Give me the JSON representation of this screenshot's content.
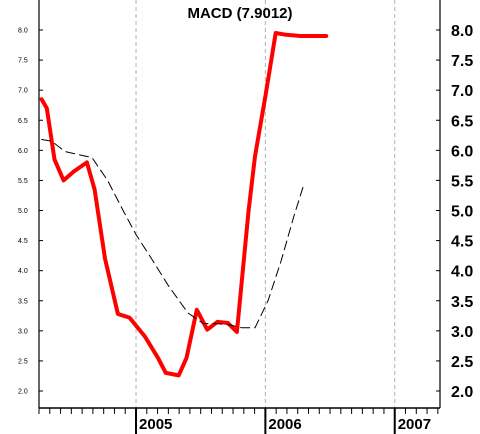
{
  "chart_data": {
    "type": "line",
    "title": "MACD (7.9012)",
    "yticks": [
      "8.0",
      "7.5",
      "7.0",
      "6.5",
      "6.0",
      "5.5",
      "5.0",
      "4.5",
      "4.0",
      "3.5",
      "3.0",
      "2.5",
      "2.0"
    ],
    "ylim": [
      1.8,
      8.3
    ],
    "xlim": [
      2004.25,
      2007.35
    ],
    "xticks": [
      "2005",
      "2006",
      "2007"
    ],
    "grid": "vertical-dashed",
    "series": [
      {
        "role": "macd",
        "color": "#ff0000",
        "style": "solid",
        "x": [
          2004.27,
          2004.31,
          2004.37,
          2004.44,
          2004.52,
          2004.62,
          2004.68,
          2004.76,
          2004.86,
          2004.95,
          2005.07,
          2005.17,
          2005.23,
          2005.33,
          2005.39,
          2005.47,
          2005.55,
          2005.63,
          2005.71,
          2005.78,
          2005.87,
          2005.92,
          2006.0,
          2006.08,
          2006.16,
          2006.22,
          2006.27,
          2006.3,
          2006.34,
          2006.41,
          2006.47
        ],
        "values": [
          6.85,
          6.7,
          5.85,
          5.5,
          5.65,
          5.8,
          5.35,
          4.2,
          3.28,
          3.22,
          2.9,
          2.55,
          2.3,
          2.26,
          2.55,
          3.35,
          3.02,
          3.15,
          3.13,
          2.98,
          5.0,
          5.9,
          6.9,
          7.95,
          7.92,
          7.91,
          7.9,
          7.9,
          7.9,
          7.9,
          7.9
        ]
      },
      {
        "role": "signal",
        "color": "#000000",
        "style": "dashed",
        "x": [
          2004.27,
          2004.35,
          2004.45,
          2004.55,
          2004.66,
          2004.78,
          2004.9,
          2005.0,
          2005.12,
          2005.25,
          2005.4,
          2005.52,
          2005.62,
          2005.72,
          2005.82,
          2005.92,
          2006.02,
          2006.12,
          2006.22,
          2006.3
        ],
        "values": [
          6.18,
          6.15,
          5.98,
          5.93,
          5.88,
          5.5,
          5.0,
          4.6,
          4.2,
          3.75,
          3.3,
          3.12,
          3.12,
          3.1,
          3.05,
          3.05,
          3.5,
          4.15,
          4.9,
          5.45
        ]
      }
    ]
  }
}
